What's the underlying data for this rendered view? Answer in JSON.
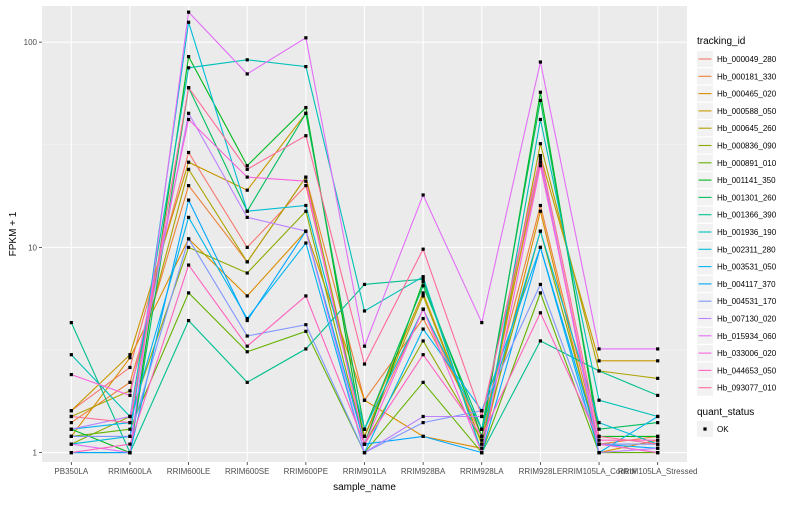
{
  "chart_data": {
    "type": "line",
    "title": "",
    "xlabel": "sample_name",
    "ylabel": "FPKM + 1",
    "y_scale": "log10",
    "ylim": [
      0.9,
      150
    ],
    "y_ticks": [
      {
        "value": 1,
        "label": "1"
      },
      {
        "value": 10,
        "label": "10"
      },
      {
        "value": 100,
        "label": "100"
      }
    ],
    "grid": true,
    "categories": [
      "PB350LA",
      "RRIM600LA",
      "RRIM600LE",
      "RRIM600SE",
      "RRIM600PE",
      "RRIM901LA",
      "RRIM928BA",
      "RRIM928LA",
      "RRIM928LE",
      "RRIM105LA_Control",
      "RRIM105LA_Stressed"
    ],
    "legend": {
      "position": "right",
      "color_title": "tracking_id",
      "shape_title": "quant_status",
      "shape_entries": [
        "OK"
      ]
    },
    "series": [
      {
        "name": "Hb_000049_280",
        "color": "#F8766D",
        "values": [
          1.6,
          2.6,
          29,
          10,
          20,
          1.2,
          5.0,
          1.2,
          26,
          1.1,
          1.1
        ]
      },
      {
        "name": "Hb_000181_330",
        "color": "#EC8239",
        "values": [
          1.4,
          2.2,
          20,
          8.5,
          22,
          1.8,
          4.5,
          1.3,
          16,
          1.1,
          1.2
        ]
      },
      {
        "name": "Hb_000465_020",
        "color": "#DB8E00",
        "values": [
          1.2,
          2.9,
          11,
          5.8,
          12,
          1.8,
          1.2,
          1.05,
          15,
          1.0,
          1.15
        ]
      },
      {
        "name": "Hb_000588_050",
        "color": "#C79800",
        "values": [
          1.6,
          3.0,
          26,
          19,
          45,
          1.3,
          6.0,
          1.1,
          28,
          2.8,
          2.8
        ]
      },
      {
        "name": "Hb_000645_260",
        "color": "#AEA200",
        "values": [
          1.5,
          2.0,
          24,
          8.5,
          22,
          1.2,
          5.8,
          1.1,
          32,
          2.5,
          2.3
        ]
      },
      {
        "name": "Hb_000836_090",
        "color": "#8FAA00",
        "values": [
          1.1,
          1.5,
          10,
          7.5,
          15,
          1.1,
          3.5,
          1.15,
          12,
          1.1,
          1.0
        ]
      },
      {
        "name": "Hb_000891_010",
        "color": "#64B200",
        "values": [
          1.2,
          1.3,
          6.0,
          3.1,
          3.9,
          1.0,
          2.2,
          1.0,
          6.0,
          1.0,
          1.0
        ]
      },
      {
        "name": "Hb_001141_350",
        "color": "#00B81B",
        "values": [
          1.3,
          1.0,
          85,
          25,
          48,
          1.1,
          6.8,
          1.2,
          57,
          1.2,
          1.2
        ]
      },
      {
        "name": "Hb_001301_260",
        "color": "#00BD5C",
        "values": [
          1.0,
          1.0,
          60,
          15,
          45,
          1.3,
          6.5,
          1.3,
          52,
          1.3,
          1.4
        ]
      },
      {
        "name": "Hb_001366_390",
        "color": "#00C08E",
        "values": [
          4.3,
          1.0,
          4.4,
          2.2,
          3.2,
          6.6,
          7.0,
          1.0,
          3.5,
          2.5,
          1.9
        ]
      },
      {
        "name": "Hb_001936_190",
        "color": "#00C1B7",
        "values": [
          3.0,
          1.5,
          75,
          82,
          76,
          4.9,
          7.2,
          1.0,
          42,
          1.8,
          1.5
        ]
      },
      {
        "name": "Hb_002311_280",
        "color": "#00BDD4",
        "values": [
          1.1,
          1.2,
          125,
          15,
          16,
          1.3,
          5.0,
          1.3,
          12,
          1.4,
          1.1
        ]
      },
      {
        "name": "Hb_003531_050",
        "color": "#00B5EE",
        "values": [
          1.3,
          1.4,
          14,
          4.5,
          10.5,
          1.0,
          4.0,
          1.6,
          10,
          1.0,
          1.5
        ]
      },
      {
        "name": "Hb_004117_370",
        "color": "#00A7FF",
        "values": [
          1.0,
          1.0,
          17,
          4.4,
          12,
          1.1,
          1.2,
          1.0,
          10,
          1.1,
          1.05
        ]
      },
      {
        "name": "Hb_004531_170",
        "color": "#7F96FF",
        "values": [
          1.2,
          1.2,
          11,
          3.7,
          4.2,
          1.0,
          1.4,
          1.6,
          6.6,
          1.1,
          1.1
        ]
      },
      {
        "name": "Hb_007130_020",
        "color": "#BC81FF",
        "values": [
          1.3,
          1.5,
          45,
          14,
          12,
          1.0,
          1.5,
          1.5,
          27,
          1.0,
          1.05
        ]
      },
      {
        "name": "Hb_015934_060",
        "color": "#E26EF7",
        "values": [
          1.1,
          1.0,
          140,
          70,
          105,
          3.3,
          18,
          4.3,
          80,
          3.2,
          3.2
        ]
      },
      {
        "name": "Hb_033006_020",
        "color": "#F863DF",
        "values": [
          2.4,
          1.9,
          42,
          22,
          21,
          1.1,
          5.0,
          1.0,
          25,
          1.1,
          1.0
        ]
      },
      {
        "name": "Hb_044653_050",
        "color": "#FF62BF",
        "values": [
          1.0,
          1.1,
          8.2,
          3.3,
          5.8,
          1.1,
          3.0,
          1.2,
          4.8,
          1.15,
          1.15
        ]
      },
      {
        "name": "Hb_093077_010",
        "color": "#FF6A98",
        "values": [
          1.5,
          1.4,
          60,
          24,
          35,
          2.7,
          9.8,
          1.5,
          28,
          1.2,
          1.1
        ]
      }
    ]
  }
}
